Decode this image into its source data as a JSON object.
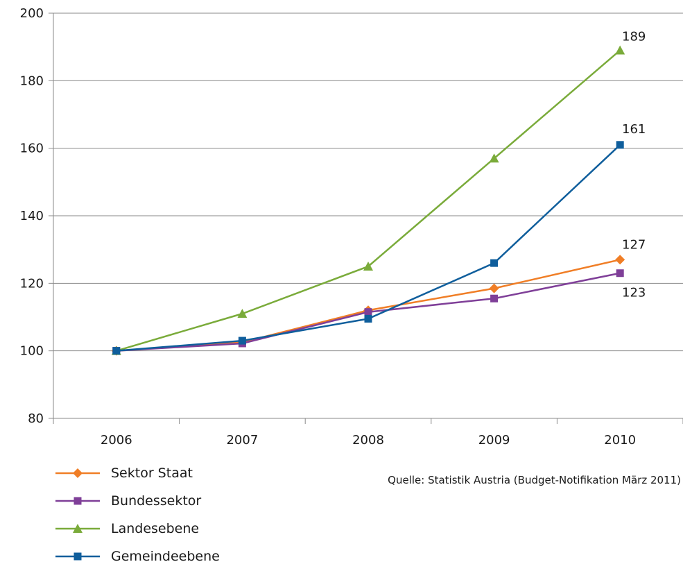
{
  "chart_data": {
    "type": "line",
    "title": "",
    "xlabel": "",
    "ylabel": "",
    "categories": [
      "2006",
      "2007",
      "2008",
      "2009",
      "2010"
    ],
    "ylim": [
      80,
      200
    ],
    "yticks": [
      80,
      100,
      120,
      140,
      160,
      180,
      200
    ],
    "grid": true,
    "legend_position": "bottom-left",
    "series": [
      {
        "name": "Sektor Staat",
        "color": "#f07e26",
        "marker": "diamond",
        "values": [
          100,
          102.5,
          112,
          118.5,
          127
        ],
        "end_label": "127"
      },
      {
        "name": "Bundessektor",
        "color": "#7f3f98",
        "marker": "square",
        "values": [
          100,
          102.2,
          111.5,
          115.5,
          123
        ],
        "end_label": "123"
      },
      {
        "name": "Landesebene",
        "color": "#7aab3a",
        "marker": "triangle",
        "values": [
          100,
          111,
          125,
          157,
          189
        ],
        "end_label": "189"
      },
      {
        "name": "Gemeindeebene",
        "color": "#0f5e9c",
        "marker": "square",
        "values": [
          100,
          103,
          109.5,
          126,
          161
        ],
        "end_label": "161"
      }
    ],
    "source": "Quelle: Statistik Austria (Budget-Notifikation März 2011)"
  }
}
